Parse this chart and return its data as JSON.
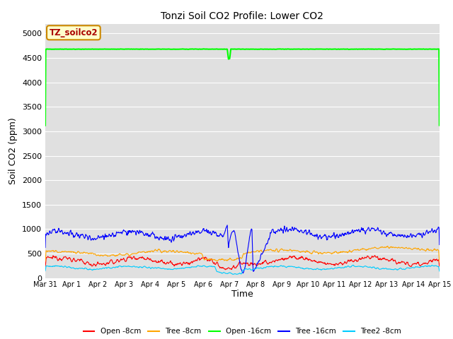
{
  "title": "Tonzi Soil CO2 Profile: Lower CO2",
  "ylabel": "Soil CO2 (ppm)",
  "xlabel": "Time",
  "ylim": [
    0,
    5200
  ],
  "yticks": [
    0,
    500,
    1000,
    1500,
    2000,
    2500,
    3000,
    3500,
    4000,
    4500,
    5000
  ],
  "legend_label": "TZ_soilco2",
  "legend_bg": "#ffffcc",
  "legend_border": "#cc8800",
  "bg_color": "#e0e0e0",
  "series": {
    "open_8cm": {
      "label": "Open -8cm",
      "color": "#ff0000"
    },
    "tree_8cm": {
      "label": "Tree -8cm",
      "color": "#ffa500"
    },
    "open_16cm": {
      "label": "Open -16cm",
      "color": "#00ff00"
    },
    "tree_16cm": {
      "label": "Tree -16cm",
      "color": "#0000ff"
    },
    "tree2_8cm": {
      "label": "Tree2 -8cm",
      "color": "#00ccff"
    }
  },
  "num_points": 1008,
  "x_tick_days": [
    0,
    1,
    2,
    3,
    4,
    5,
    6,
    7,
    8,
    9,
    10,
    11,
    12,
    13,
    14,
    15
  ],
  "x_tick_labels": [
    "Mar 31",
    "Apr 1",
    "Apr 2",
    "Apr 3",
    "Apr 4",
    "Apr 5",
    "Apr 6",
    "Apr 7",
    "Apr 8",
    "Apr 9",
    "Apr 10",
    "Apr 11",
    "Apr 12",
    "Apr 13",
    "Apr 14",
    "Apr 15"
  ]
}
